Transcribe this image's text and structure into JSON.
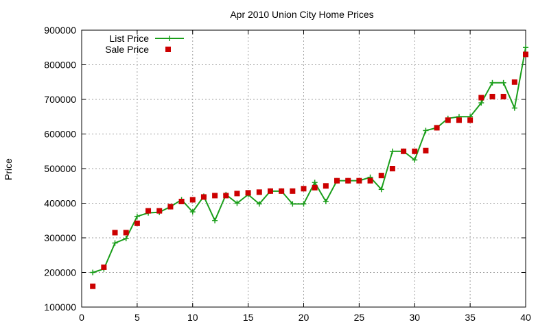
{
  "chart_data": {
    "type": "line",
    "title": "Apr 2010 Union City Home Prices",
    "xlabel": "",
    "ylabel": "Price",
    "xlim": [
      0,
      40
    ],
    "ylim": [
      100000,
      900000
    ],
    "x_ticks": [
      "0",
      "5",
      "10",
      "15",
      "20",
      "25",
      "30",
      "35",
      "40"
    ],
    "y_ticks": [
      "100000",
      "200000",
      "300000",
      "400000",
      "500000",
      "600000",
      "700000",
      "800000",
      "900000"
    ],
    "grid": true,
    "legend": "top-left",
    "x": [
      1,
      2,
      3,
      4,
      5,
      6,
      7,
      8,
      9,
      10,
      11,
      12,
      13,
      14,
      15,
      16,
      17,
      18,
      19,
      20,
      21,
      22,
      23,
      24,
      25,
      26,
      27,
      28,
      29,
      30,
      31,
      32,
      33,
      34,
      35,
      36,
      37,
      38,
      39,
      40
    ],
    "series": [
      {
        "name": "List Price",
        "style": "line+cross",
        "color": "#1a9e1a",
        "values": [
          200000,
          210000,
          285000,
          298000,
          362000,
          372000,
          374000,
          390000,
          410000,
          375000,
          420000,
          350000,
          425000,
          400000,
          425000,
          398000,
          435000,
          435000,
          398000,
          398000,
          460000,
          405000,
          465000,
          465000,
          465000,
          475000,
          440000,
          550000,
          550000,
          525000,
          610000,
          618000,
          645000,
          650000,
          650000,
          690000,
          748000,
          748000,
          675000,
          850000
        ]
      },
      {
        "name": "Sale Price",
        "style": "square",
        "color": "#cc0000",
        "values": [
          160000,
          215000,
          315000,
          315000,
          342000,
          378000,
          378000,
          390000,
          405000,
          410000,
          418000,
          422000,
          422000,
          428000,
          430000,
          432000,
          435000,
          435000,
          435000,
          442000,
          445000,
          450000,
          465000,
          465000,
          465000,
          465000,
          480000,
          500000,
          550000,
          550000,
          552000,
          618000,
          640000,
          640000,
          640000,
          705000,
          708000,
          708000,
          750000,
          830000
        ]
      }
    ]
  }
}
